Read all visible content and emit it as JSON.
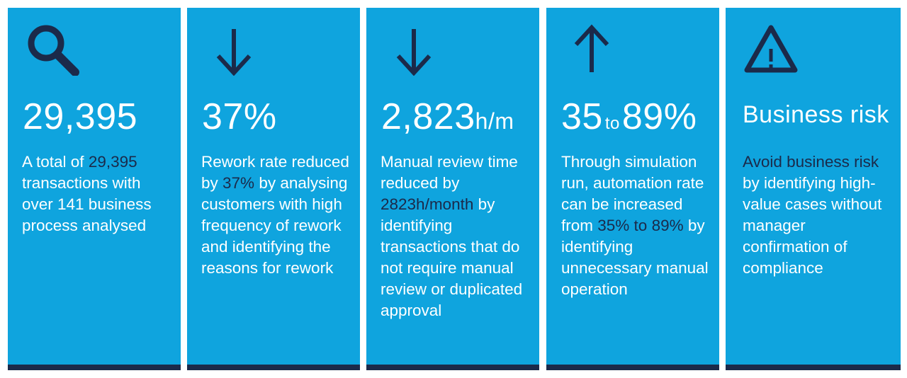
{
  "cards": [
    {
      "icon": "magnifying-glass-icon",
      "big_value": "29,395",
      "desc_before": "A total of ",
      "desc_highlight": "29,395",
      "desc_after": " transactions with over 141 business process analysed"
    },
    {
      "icon": "arrow-down-icon",
      "big_value": "37%",
      "desc_before": "Rework rate reduced by ",
      "desc_highlight": "37%",
      "desc_after": " by analysing customers with high frequency of rework and identifying the reasons for rework"
    },
    {
      "icon": "arrow-down-icon",
      "big_value": "2,823",
      "big_unit": "h/m",
      "desc_before": "Manual review time reduced by ",
      "desc_highlight": "2823h/month",
      "desc_after": " by identifying transactions that do not require manual review or duplicated approval"
    },
    {
      "icon": "arrow-up-icon",
      "big_from": "35",
      "big_to_word": "to",
      "big_to": "89%",
      "desc_before": "Through simulation run, automation rate can be increased from ",
      "desc_highlight": "35% to 89%",
      "desc_after": " by identifying unnecessary manual operation"
    },
    {
      "icon": "warning-triangle-icon",
      "big_title": "Business risk",
      "desc_highlight": "Avoid business risk",
      "desc_after": " by identifying high-value cases without manager confirmation of compliance"
    }
  ],
  "colors": {
    "card_background": "#0fa4de",
    "accent_dark": "#1b2a4a",
    "text": "#ffffff"
  }
}
